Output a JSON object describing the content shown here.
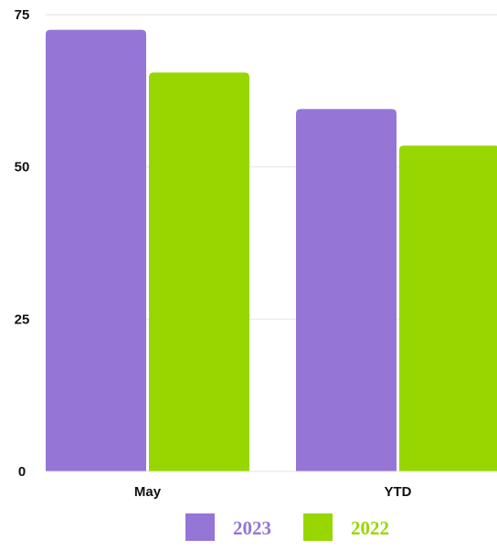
{
  "chart_data": {
    "type": "bar",
    "categories": [
      "May",
      "YTD"
    ],
    "series": [
      {
        "name": "2023",
        "color": "#9575d6",
        "values": [
          72.5,
          59.5
        ]
      },
      {
        "name": "2022",
        "color": "#98d600",
        "values": [
          65.5,
          53.5
        ]
      }
    ],
    "ylim": [
      0,
      75
    ],
    "yticks": [
      0,
      25,
      50,
      75
    ],
    "grid": true,
    "legend": "bottom"
  }
}
